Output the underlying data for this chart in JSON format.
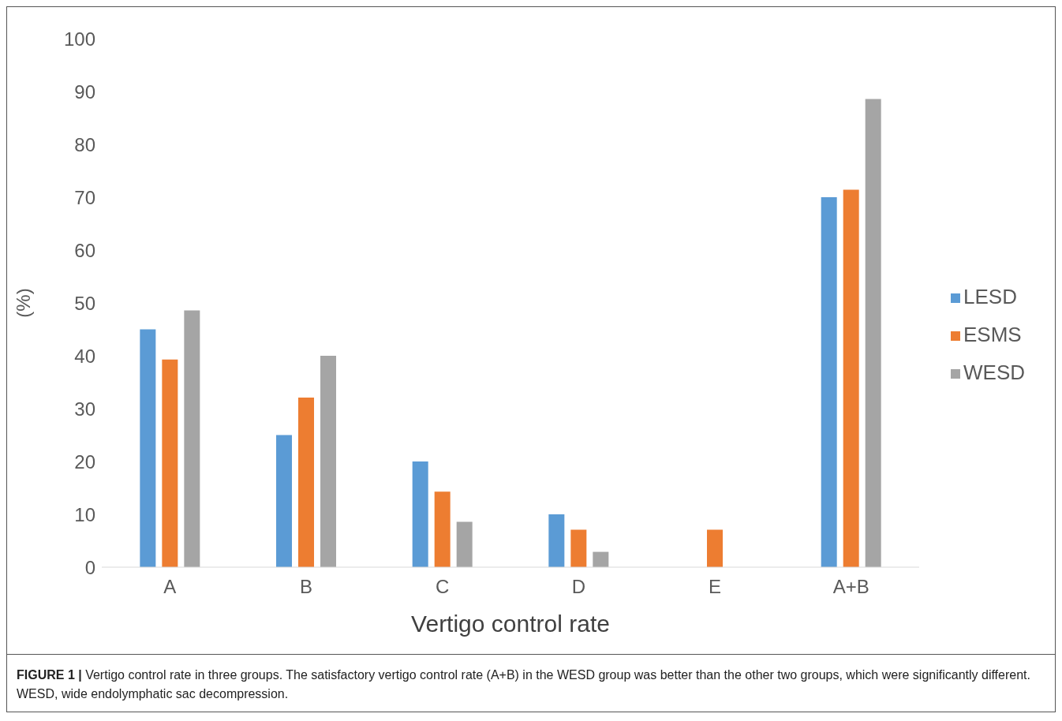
{
  "chart_data": {
    "type": "bar",
    "categories": [
      "A",
      "B",
      "C",
      "D",
      "E",
      "A+B"
    ],
    "series": [
      {
        "name": "LESD",
        "color": "#5b9bd5",
        "values": [
          45,
          25,
          20,
          10,
          0,
          70
        ]
      },
      {
        "name": "ESMS",
        "color": "#ed7d31",
        "values": [
          39.3,
          32.1,
          14.3,
          7.1,
          7.1,
          71.4
        ]
      },
      {
        "name": "WESD",
        "color": "#a5a5a5",
        "values": [
          48.6,
          40,
          8.6,
          2.9,
          0,
          88.6
        ]
      }
    ],
    "xlabel": "Vertigo control rate",
    "ylabel": "(%)",
    "ylim": [
      0,
      100
    ],
    "yticks": [
      0,
      10,
      20,
      30,
      40,
      50,
      60,
      70,
      80,
      90,
      100
    ],
    "grid": false,
    "legend": "right",
    "annotations": [
      "FIGURE 1 | Vertigo control rate in three groups. The satisfactory vertigo control rate (A+B) in the WESD group was better than the other two groups, which were significantly different. WESD, wide endolymphatic sac decompression."
    ]
  }
}
